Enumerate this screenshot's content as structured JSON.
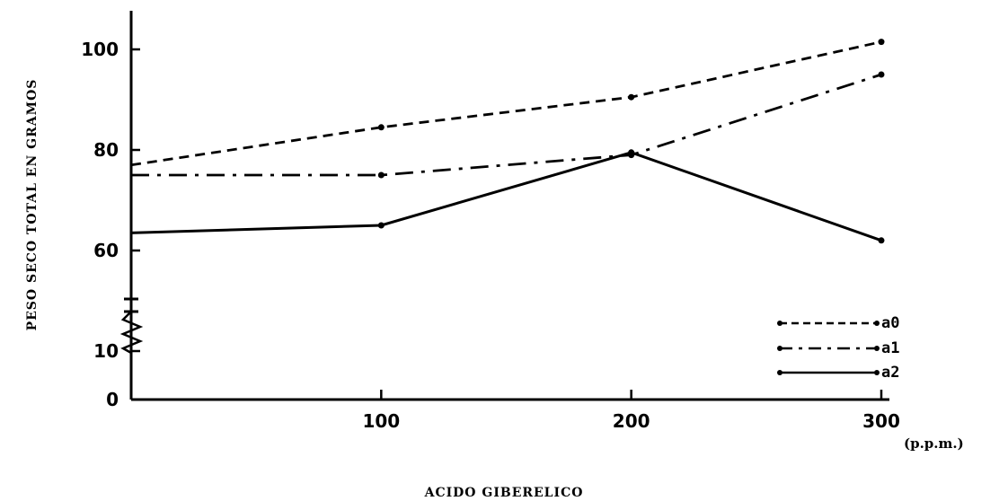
{
  "chart_data": {
    "type": "line",
    "xlabel": "ACIDO GIBERELICO",
    "ylabel": "PESO SECO TOTAL EN GRAMOS",
    "x_unit": "(p.p.m.)",
    "x": [
      0,
      100,
      200,
      300
    ],
    "x_tick_labels": [
      "100",
      "200",
      "300"
    ],
    "y_tick_labels": [
      "0",
      "10",
      "60",
      "80",
      "100"
    ],
    "y_axis_break": true,
    "grid": false,
    "legend_position": "bottom-right",
    "series": [
      {
        "name": "a0",
        "style": "dashed",
        "values": [
          77,
          84.5,
          90.5,
          101.5
        ]
      },
      {
        "name": "a1",
        "style": "dash-dot",
        "values": [
          75,
          75,
          79,
          95
        ]
      },
      {
        "name": "a2",
        "style": "solid",
        "values": [
          63.5,
          65,
          79.5,
          62
        ]
      }
    ]
  }
}
